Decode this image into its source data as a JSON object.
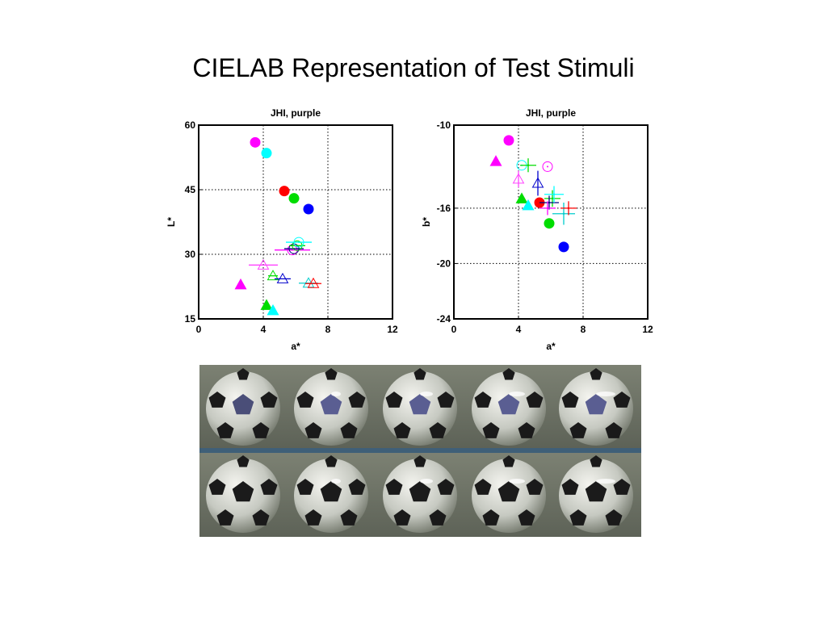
{
  "slide": {
    "title": "CIELAB Representation of Test Stimuli"
  },
  "chart_data": [
    {
      "type": "scatter",
      "title": "JHI, purple",
      "xlabel": "a*",
      "ylabel": "L*",
      "xlim": [
        0,
        12
      ],
      "ylim": [
        15,
        60
      ],
      "xticks": [
        "0",
        "4",
        "8",
        "12"
      ],
      "yticks": [
        "15",
        "30",
        "45",
        "60"
      ],
      "grid": "dotted",
      "points": [
        {
          "x": 3.5,
          "y": 56,
          "marker": "filled-circle",
          "color": "#ff00ff"
        },
        {
          "x": 4.2,
          "y": 53.5,
          "marker": "filled-circle",
          "color": "#00ffff"
        },
        {
          "x": 5.3,
          "y": 44.7,
          "marker": "filled-circle",
          "color": "#ff0000"
        },
        {
          "x": 5.9,
          "y": 43,
          "marker": "filled-circle",
          "color": "#00dd00"
        },
        {
          "x": 6.8,
          "y": 40.5,
          "marker": "filled-circle",
          "color": "#0000ff"
        },
        {
          "x": 2.6,
          "y": 23,
          "marker": "filled-triangle",
          "color": "#ff00ff"
        },
        {
          "x": 4.2,
          "y": 18.2,
          "marker": "filled-triangle",
          "color": "#00dd00"
        },
        {
          "x": 4.6,
          "y": 17,
          "marker": "filled-triangle",
          "color": "#00ffff"
        },
        {
          "x": 4.0,
          "y": 27.5,
          "marker": "open-triangle",
          "color": "#ff44ff",
          "xerr": 0.9
        },
        {
          "x": 4.6,
          "y": 25,
          "marker": "open-triangle",
          "color": "#00dd00",
          "xerr": 0.3
        },
        {
          "x": 5.2,
          "y": 24.3,
          "marker": "open-triangle",
          "color": "#0000cc",
          "xerr": 0.5
        },
        {
          "x": 6.8,
          "y": 23.3,
          "marker": "open-triangle",
          "color": "#00cccc",
          "xerr": 0.6
        },
        {
          "x": 7.1,
          "y": 23.2,
          "marker": "open-triangle",
          "color": "#ff0000",
          "xerr": 0.5
        },
        {
          "x": 5.8,
          "y": 31,
          "marker": "open-circle",
          "color": "#ff00ff",
          "xerr": 1.1
        },
        {
          "x": 5.9,
          "y": 31.3,
          "marker": "open-circle",
          "color": "#000080",
          "xerr": 0.6
        },
        {
          "x": 6.1,
          "y": 32,
          "marker": "open-circle",
          "color": "#00dd00",
          "xerr": 0.5
        },
        {
          "x": 6.2,
          "y": 32.8,
          "marker": "open-circle",
          "color": "#00ffff",
          "xerr": 0.8
        }
      ]
    },
    {
      "type": "scatter",
      "title": "JHI, purple",
      "xlabel": "a*",
      "ylabel": "b*",
      "xlim": [
        0,
        12
      ],
      "ylim": [
        -24,
        -10
      ],
      "xticks": [
        "0",
        "4",
        "8",
        "12"
      ],
      "yticks": [
        "-24",
        "-20",
        "-16",
        "-10"
      ],
      "grid": "dotted",
      "points": [
        {
          "x": 3.4,
          "y": -11.1,
          "marker": "filled-circle",
          "color": "#ff00ff"
        },
        {
          "x": 5.3,
          "y": -15.6,
          "marker": "filled-circle",
          "color": "#ff0000"
        },
        {
          "x": 5.9,
          "y": -17.1,
          "marker": "filled-circle",
          "color": "#00dd00"
        },
        {
          "x": 6.8,
          "y": -18.8,
          "marker": "filled-circle",
          "color": "#0000ff"
        },
        {
          "x": 2.6,
          "y": -12.6,
          "marker": "filled-triangle",
          "color": "#ff00ff"
        },
        {
          "x": 4.2,
          "y": -15.3,
          "marker": "filled-triangle",
          "color": "#00dd00"
        },
        {
          "x": 4.6,
          "y": -15.8,
          "marker": "filled-triangle",
          "color": "#00ffff"
        },
        {
          "x": 4.2,
          "y": -12.9,
          "marker": "open-circle",
          "color": "#00ffff"
        },
        {
          "x": 5.8,
          "y": -13,
          "marker": "open-circle",
          "color": "#ff00ff"
        },
        {
          "x": 4.0,
          "y": -13.9,
          "marker": "open-triangle",
          "color": "#ff44ff",
          "yerr": 0.6
        },
        {
          "x": 5.2,
          "y": -14.2,
          "marker": "open-triangle",
          "color": "#0000cc",
          "yerr": 0.9
        },
        {
          "x": 4.6,
          "y": -12.9,
          "marker": "cross",
          "color": "#00dd00",
          "xerr": 0.5,
          "yerr": 0.5
        },
        {
          "x": 6.1,
          "y": -15.3,
          "marker": "cross",
          "color": "#00dd00",
          "xerr": 0.5,
          "yerr": 0.6
        },
        {
          "x": 5.9,
          "y": -15.6,
          "marker": "cross",
          "color": "#000080",
          "xerr": 0.6,
          "yerr": 0.5
        },
        {
          "x": 6.2,
          "y": -15.0,
          "marker": "cross",
          "color": "#00ffff",
          "xerr": 0.6,
          "yerr": 0.6
        },
        {
          "x": 5.8,
          "y": -16.0,
          "marker": "cross",
          "color": "#ff00ff",
          "xerr": 0.5,
          "yerr": 0.5
        },
        {
          "x": 6.8,
          "y": -16.4,
          "marker": "cross",
          "color": "#00cccc",
          "xerr": 0.7,
          "yerr": 0.8
        },
        {
          "x": 7.1,
          "y": -16.0,
          "marker": "cross",
          "color": "#ff0000",
          "xerr": 0.5,
          "yerr": 0.5
        }
      ]
    }
  ]
}
